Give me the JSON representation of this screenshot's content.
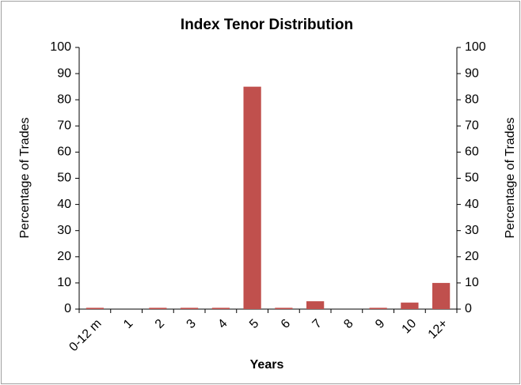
{
  "chart_data": {
    "type": "bar",
    "title": "Index Tenor Distribution",
    "x_label": "Years",
    "y_label": "Percentage of Trades",
    "y2_label": "Percentage of Trades",
    "categories": [
      "0-12 m",
      "1",
      "2",
      "3",
      "4",
      "5",
      "6",
      "7",
      "8",
      "9",
      "10",
      "12+"
    ],
    "values": [
      0.5,
      0,
      0.5,
      0.5,
      0.5,
      85,
      0.5,
      3,
      0,
      0.5,
      2.5,
      10
    ],
    "color": "#c0504d",
    "ylim": [
      0,
      100
    ],
    "yticks": [
      0,
      10,
      20,
      30,
      40,
      50,
      60,
      70,
      80,
      90,
      100
    ],
    "y2lim": [
      0,
      100
    ],
    "y2ticks": [
      0,
      10,
      20,
      30,
      40,
      50,
      60,
      70,
      80,
      90,
      100
    ],
    "grid": false
  }
}
